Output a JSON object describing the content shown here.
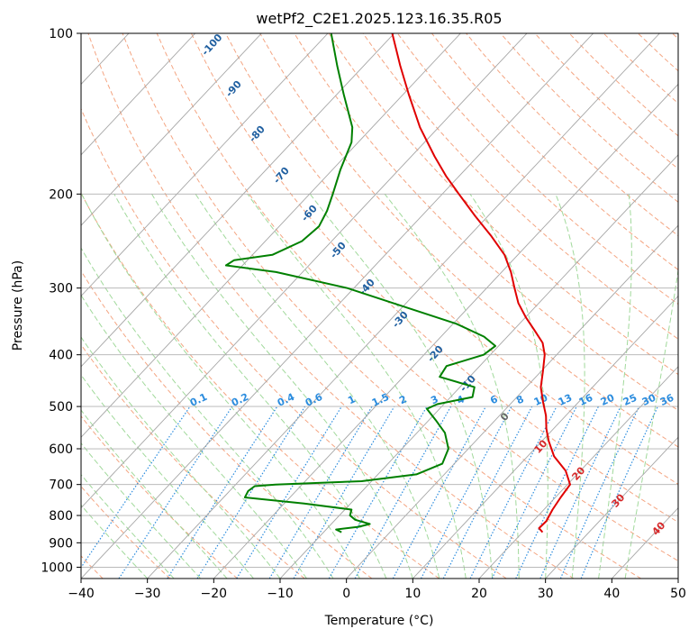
{
  "chart_data": {
    "type": "line",
    "title": "wetPf2_C2E1.2025.123.16.35.R05",
    "xlabel": "Temperature (°C)",
    "ylabel": "Pressure (hPa)",
    "xlim": [
      -40,
      50
    ],
    "ylim": [
      1050,
      100
    ],
    "y_scale": "log",
    "x_ticks": [
      -40,
      -30,
      -20,
      -10,
      0,
      10,
      20,
      30,
      40,
      50
    ],
    "y_ticks": [
      100,
      200,
      300,
      400,
      500,
      600,
      700,
      800,
      900,
      1000
    ],
    "grid": true,
    "series": [
      {
        "key": "temperature",
        "color": "#e00000",
        "points": [
          {
            "p": 860,
            "t": 23.0
          },
          {
            "p": 845,
            "t": 21.9
          },
          {
            "p": 820,
            "t": 22.0
          },
          {
            "p": 780,
            "t": 21.3
          },
          {
            "p": 740,
            "t": 20.8
          },
          {
            "p": 700,
            "t": 20.4
          },
          {
            "p": 660,
            "t": 17.8
          },
          {
            "p": 620,
            "t": 14.0
          },
          {
            "p": 580,
            "t": 11.0
          },
          {
            "p": 550,
            "t": 8.9
          },
          {
            "p": 520,
            "t": 7.0
          },
          {
            "p": 490,
            "t": 4.6
          },
          {
            "p": 460,
            "t": 2.2
          },
          {
            "p": 430,
            "t": 0.3
          },
          {
            "p": 400,
            "t": -1.8
          },
          {
            "p": 380,
            "t": -3.8
          },
          {
            "p": 360,
            "t": -6.8
          },
          {
            "p": 340,
            "t": -10.0
          },
          {
            "p": 320,
            "t": -13.1
          },
          {
            "p": 300,
            "t": -15.8
          },
          {
            "p": 280,
            "t": -18.6
          },
          {
            "p": 260,
            "t": -22.0
          },
          {
            "p": 240,
            "t": -26.6
          },
          {
            "p": 220,
            "t": -31.9
          },
          {
            "p": 200,
            "t": -37.5
          },
          {
            "p": 185,
            "t": -42.0
          },
          {
            "p": 170,
            "t": -46.5
          },
          {
            "p": 150,
            "t": -52.8
          },
          {
            "p": 130,
            "t": -59.2
          },
          {
            "p": 115,
            "t": -64.5
          },
          {
            "p": 100,
            "t": -70.3
          }
        ]
      },
      {
        "key": "dewpoint",
        "color": "#008000",
        "points": [
          {
            "p": 860,
            "t": -7.3
          },
          {
            "p": 850,
            "t": -8.5
          },
          {
            "p": 840,
            "t": -5.5
          },
          {
            "p": 830,
            "t": -4.2
          },
          {
            "p": 815,
            "t": -7.0
          },
          {
            "p": 800,
            "t": -8.4
          },
          {
            "p": 780,
            "t": -9.0
          },
          {
            "p": 760,
            "t": -17.0
          },
          {
            "p": 740,
            "t": -26.8
          },
          {
            "p": 720,
            "t": -27.2
          },
          {
            "p": 705,
            "t": -26.9
          },
          {
            "p": 700,
            "t": -24.0
          },
          {
            "p": 690,
            "t": -11.5
          },
          {
            "p": 670,
            "t": -4.2
          },
          {
            "p": 640,
            "t": -1.8
          },
          {
            "p": 600,
            "t": -3.0
          },
          {
            "p": 560,
            "t": -5.8
          },
          {
            "p": 530,
            "t": -9.0
          },
          {
            "p": 505,
            "t": -11.9
          },
          {
            "p": 495,
            "t": -11.0
          },
          {
            "p": 480,
            "t": -6.7
          },
          {
            "p": 460,
            "t": -7.8
          },
          {
            "p": 440,
            "t": -14.5
          },
          {
            "p": 420,
            "t": -15.0
          },
          {
            "p": 400,
            "t": -11.0
          },
          {
            "p": 385,
            "t": -10.5
          },
          {
            "p": 370,
            "t": -13.5
          },
          {
            "p": 350,
            "t": -19.5
          },
          {
            "p": 320,
            "t": -32.0
          },
          {
            "p": 300,
            "t": -41.0
          },
          {
            "p": 280,
            "t": -54.0
          },
          {
            "p": 272,
            "t": -62.5
          },
          {
            "p": 266,
            "t": -62.0
          },
          {
            "p": 260,
            "t": -57.0
          },
          {
            "p": 245,
            "t": -54.5
          },
          {
            "p": 230,
            "t": -54.0
          },
          {
            "p": 215,
            "t": -55.0
          },
          {
            "p": 200,
            "t": -56.5
          },
          {
            "p": 180,
            "t": -58.8
          },
          {
            "p": 160,
            "t": -61.0
          },
          {
            "p": 150,
            "t": -63.0
          },
          {
            "p": 130,
            "t": -69.0
          },
          {
            "p": 115,
            "t": -74.0
          },
          {
            "p": 100,
            "t": -79.5
          }
        ]
      }
    ],
    "dry_adiabat_labels": [
      "-100",
      "-90",
      "-80",
      "-70",
      "-60",
      "-50",
      "-40",
      "-30",
      "-20",
      "-10"
    ],
    "moist_adiabat_labels": [
      "0",
      "10",
      "20",
      "30",
      "40"
    ],
    "mixing_ratio_labels": [
      "0.1",
      "0.2",
      "0.4",
      "0.6",
      "1",
      "1.5",
      "2",
      "3",
      "4",
      "6",
      "8",
      "10",
      "13",
      "16",
      "20",
      "25",
      "30",
      "36"
    ],
    "colors": {
      "isotherm": "#a6a6a6",
      "isobar": "#b0b0b0",
      "dry_adiabat": "#f4a582",
      "moist_adiabat": "#a1d99b",
      "mixing_ratio": "#2b8cde",
      "label_dry": "#1f5fa0",
      "label_mixing": "#2b8cde",
      "label_moist": "#d62728",
      "label_moist_zero": "#666666"
    }
  }
}
